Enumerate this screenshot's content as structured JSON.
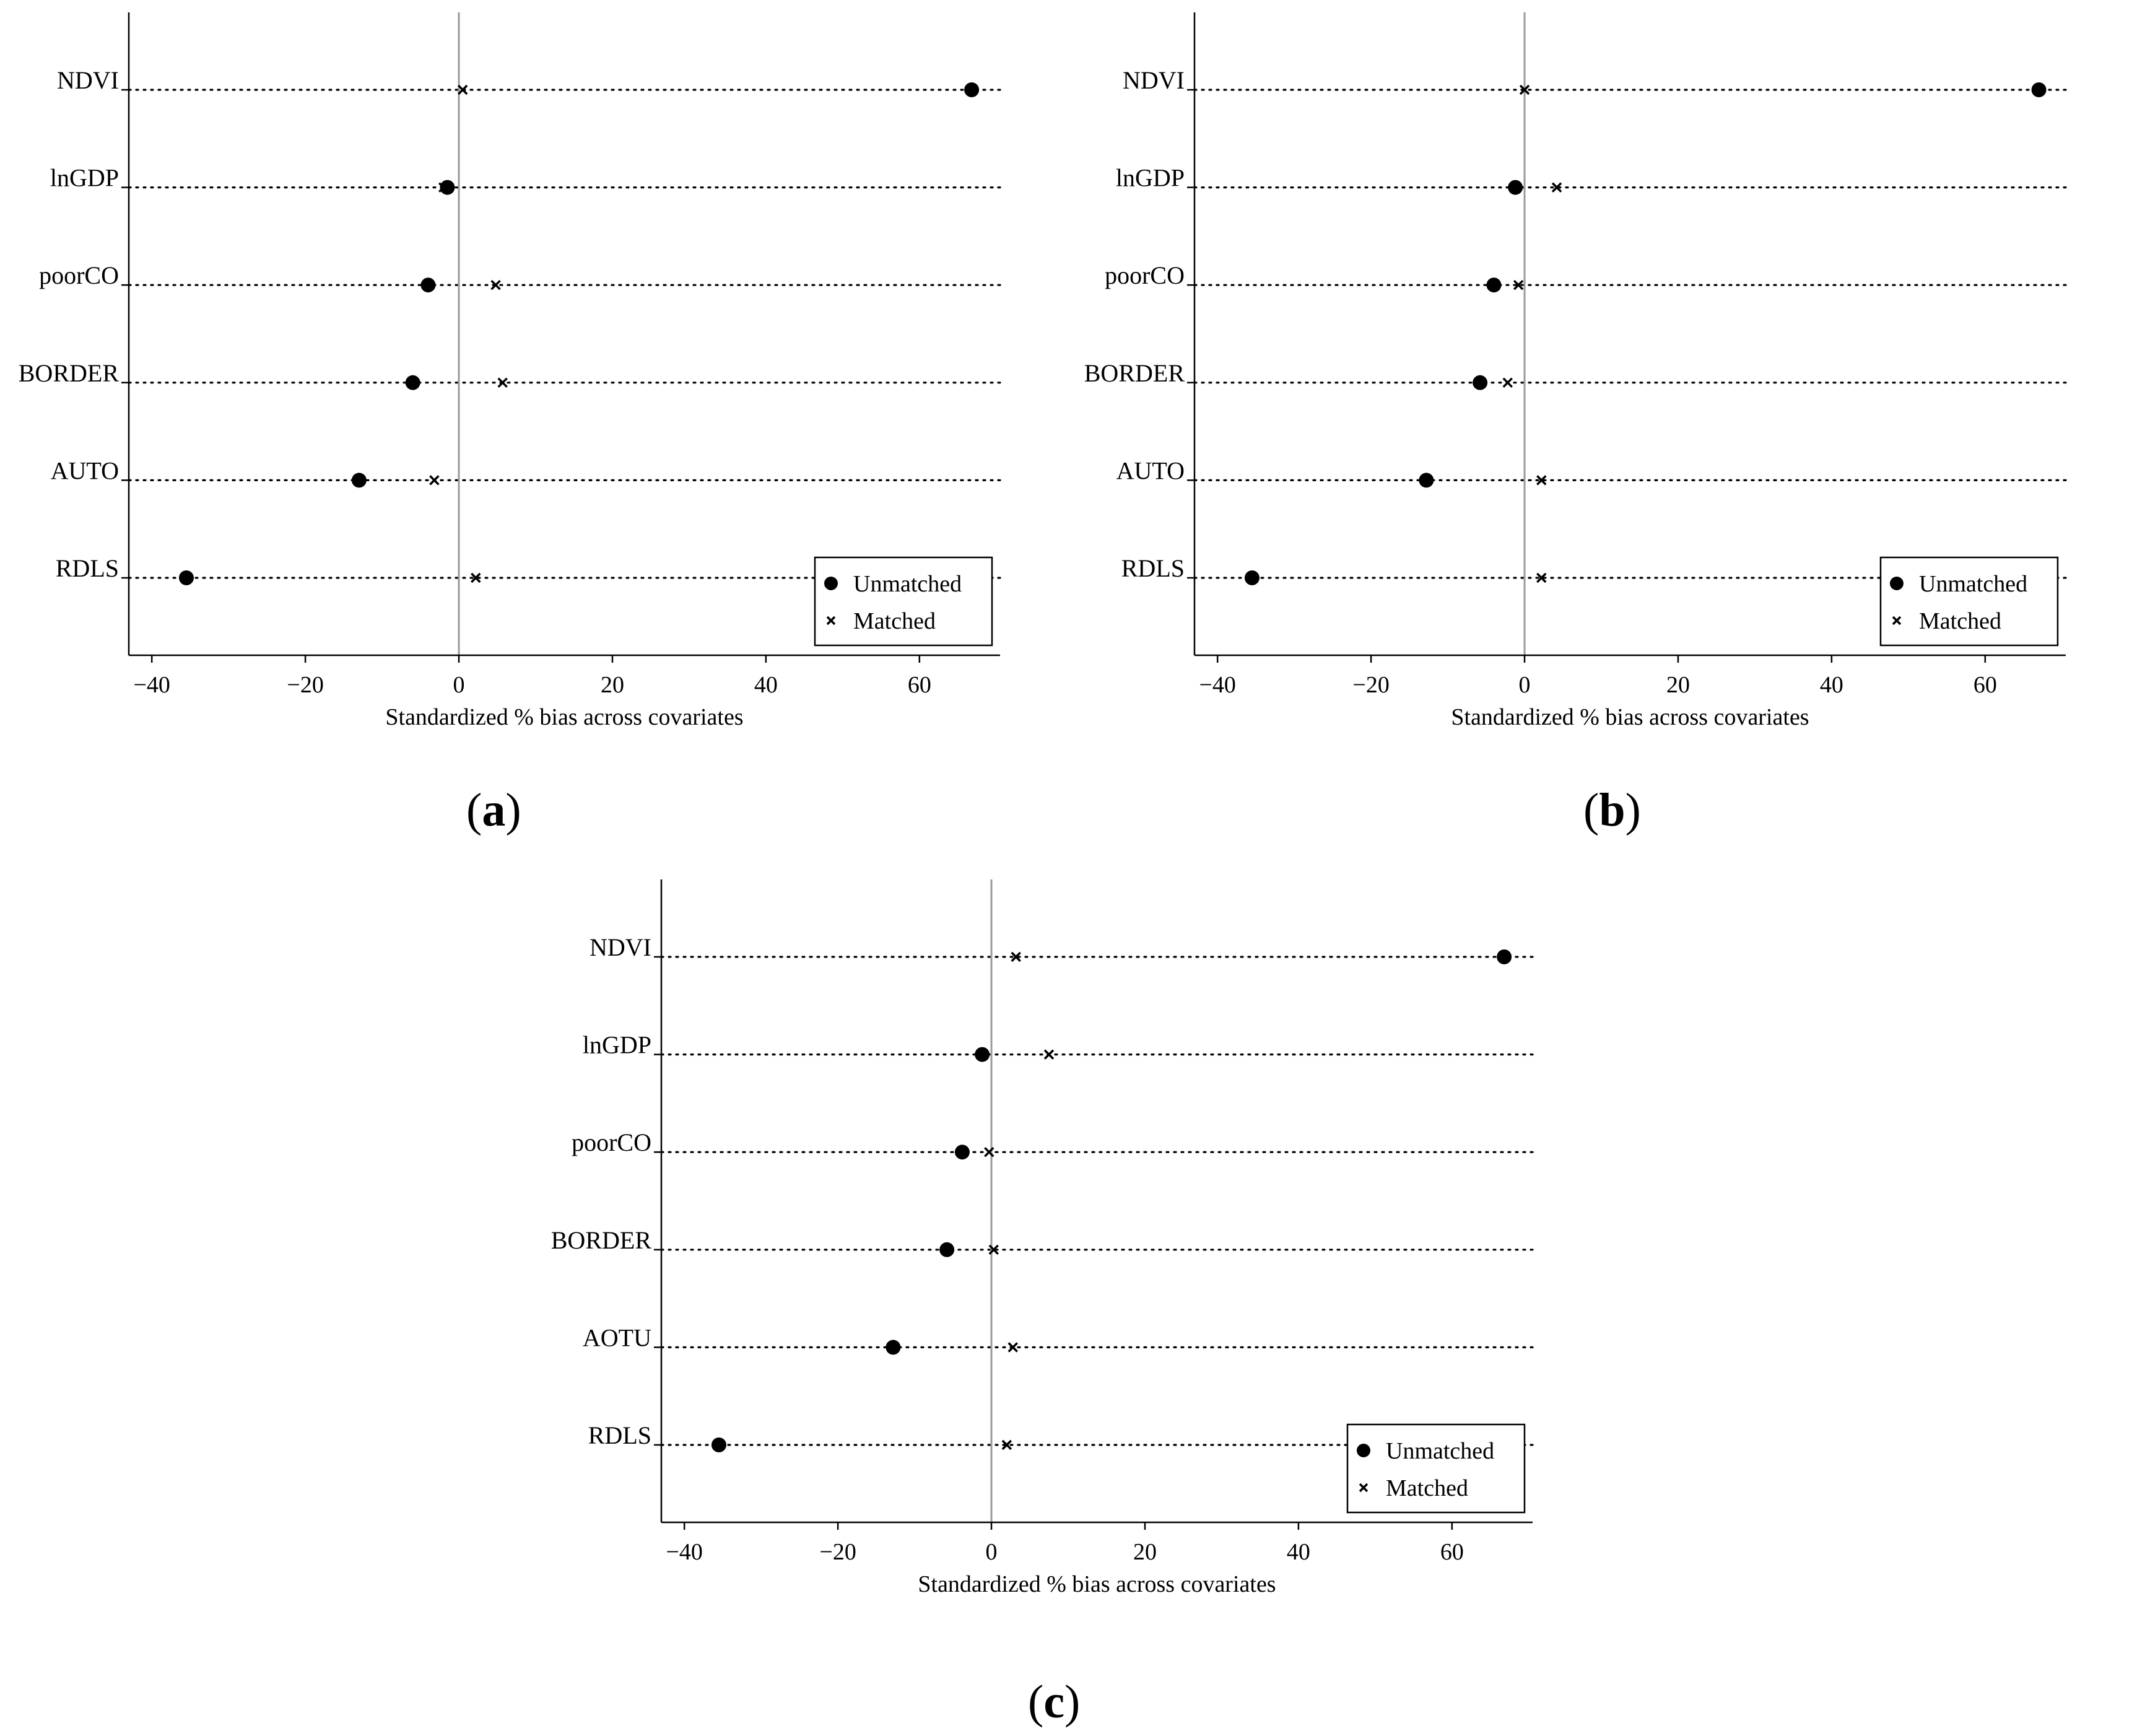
{
  "chart_data": [
    {
      "type": "scatter",
      "panel_label": "a",
      "covariates": [
        "NDVI",
        "lnGDP",
        "poorCO",
        "BORDER",
        "AUTO",
        "RDLS"
      ],
      "series": [
        {
          "name": "Unmatched",
          "marker": "circle",
          "values": [
            66.8,
            -1.5,
            -4,
            -6,
            -13,
            -35.5
          ]
        },
        {
          "name": "Matched",
          "marker": "x",
          "values": [
            0.5,
            -2,
            4.8,
            5.7,
            -3.2,
            2.2
          ]
        }
      ],
      "xlabel": "Standardized % bias across covariates",
      "xticks": [
        "−40",
        "−20",
        "0",
        "20",
        "40",
        "60"
      ],
      "xtick_values": [
        -40,
        -20,
        0,
        20,
        40,
        60
      ],
      "xlim": [
        -43,
        70.5
      ],
      "reference_line": 0,
      "legend_position": "bottom-right"
    },
    {
      "type": "scatter",
      "panel_label": "b",
      "covariates": [
        "NDVI",
        "lnGDP",
        "poorCO",
        "BORDER",
        "AUTO",
        "RDLS"
      ],
      "series": [
        {
          "name": "Unmatched",
          "marker": "circle",
          "values": [
            67,
            -1.2,
            -4,
            -5.8,
            -12.8,
            -35.5
          ]
        },
        {
          "name": "Matched",
          "marker": "x",
          "values": [
            0,
            4.2,
            -0.8,
            -2.2,
            2.2,
            2.2
          ]
        }
      ],
      "xlabel": "Standardized % bias across covariates",
      "xticks": [
        "−40",
        "−20",
        "0",
        "20",
        "40",
        "60"
      ],
      "xtick_values": [
        -40,
        -20,
        0,
        20,
        40,
        60
      ],
      "xlim": [
        -43,
        70.5
      ],
      "reference_line": 0,
      "legend_position": "bottom-right"
    },
    {
      "type": "scatter",
      "panel_label": "c",
      "covariates": [
        "NDVI",
        "lnGDP",
        "poorCO",
        "BORDER",
        "AOTU",
        "RDLS"
      ],
      "series": [
        {
          "name": "Unmatched",
          "marker": "circle",
          "values": [
            66.8,
            -1.2,
            -3.8,
            -5.8,
            -12.8,
            -35.5
          ]
        },
        {
          "name": "Matched",
          "marker": "x",
          "values": [
            3.2,
            7.5,
            -0.3,
            0.3,
            2.8,
            2
          ]
        }
      ],
      "xlabel": "Standardized % bias across covariates",
      "xticks": [
        "−40",
        "−20",
        "0",
        "20",
        "40",
        "60"
      ],
      "xtick_values": [
        -40,
        -20,
        0,
        20,
        40,
        60
      ],
      "xlim": [
        -43,
        70.5
      ],
      "reference_line": 0,
      "legend_position": "bottom-right"
    }
  ]
}
